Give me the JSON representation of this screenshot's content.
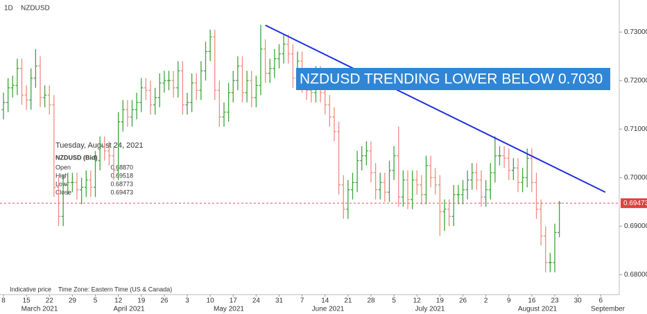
{
  "chart_data": {
    "type": "ohlc",
    "symbol_interval": "1D",
    "symbol": "NZDUSD",
    "footer_left": "Indicative price",
    "footer_timezone": "Time Zone: Eastern Time (US & Canada)",
    "annotation": "NZDUSD TRENDING LOWER BELOW 0.7030",
    "up_color": "#3aa53a",
    "down_color": "#f08a80",
    "trend_color": "#1f2fe0",
    "annotation_color": "#2f86d6",
    "x": [
      "2021-03-08",
      "2021-03-09",
      "2021-03-10",
      "2021-03-11",
      "2021-03-12",
      "2021-03-15",
      "2021-03-16",
      "2021-03-17",
      "2021-03-18",
      "2021-03-19",
      "2021-03-22",
      "2021-03-23",
      "2021-03-24",
      "2021-03-25",
      "2021-03-26",
      "2021-03-29",
      "2021-03-30",
      "2021-03-31",
      "2021-04-01",
      "2021-04-02",
      "2021-04-05",
      "2021-04-06",
      "2021-04-07",
      "2021-04-08",
      "2021-04-09",
      "2021-04-12",
      "2021-04-13",
      "2021-04-14",
      "2021-04-15",
      "2021-04-16",
      "2021-04-19",
      "2021-04-20",
      "2021-04-21",
      "2021-04-22",
      "2021-04-23",
      "2021-04-26",
      "2021-04-27",
      "2021-04-28",
      "2021-04-29",
      "2021-04-30",
      "2021-05-03",
      "2021-05-04",
      "2021-05-05",
      "2021-05-06",
      "2021-05-07",
      "2021-05-10",
      "2021-05-11",
      "2021-05-12",
      "2021-05-13",
      "2021-05-14",
      "2021-05-17",
      "2021-05-18",
      "2021-05-19",
      "2021-05-20",
      "2021-05-21",
      "2021-05-24",
      "2021-05-25",
      "2021-05-26",
      "2021-05-27",
      "2021-05-28",
      "2021-05-31",
      "2021-06-01",
      "2021-06-02",
      "2021-06-03",
      "2021-06-04",
      "2021-06-07",
      "2021-06-08",
      "2021-06-09",
      "2021-06-10",
      "2021-06-11",
      "2021-06-14",
      "2021-06-15",
      "2021-06-16",
      "2021-06-17",
      "2021-06-18",
      "2021-06-21",
      "2021-06-22",
      "2021-06-23",
      "2021-06-24",
      "2021-06-25",
      "2021-06-28",
      "2021-06-29",
      "2021-06-30",
      "2021-07-01",
      "2021-07-02",
      "2021-07-05",
      "2021-07-06",
      "2021-07-07",
      "2021-07-08",
      "2021-07-09",
      "2021-07-12",
      "2021-07-13",
      "2021-07-14",
      "2021-07-15",
      "2021-07-16",
      "2021-07-19",
      "2021-07-20",
      "2021-07-21",
      "2021-07-22",
      "2021-07-23",
      "2021-07-26",
      "2021-07-27",
      "2021-07-28",
      "2021-07-29",
      "2021-07-30",
      "2021-08-02",
      "2021-08-03",
      "2021-08-04",
      "2021-08-05",
      "2021-08-06",
      "2021-08-09",
      "2021-08-10",
      "2021-08-11",
      "2021-08-12",
      "2021-08-13",
      "2021-08-16",
      "2021-08-17",
      "2021-08-18",
      "2021-08-19",
      "2021-08-20",
      "2021-08-23",
      "2021-08-24"
    ],
    "open": [
      0.714,
      0.7155,
      0.7185,
      0.719,
      0.7225,
      0.717,
      0.716,
      0.7205,
      0.723,
      0.7165,
      0.717,
      0.715,
      0.698,
      0.692,
      0.6985,
      0.699,
      0.699,
      0.6975,
      0.698,
      0.6995,
      0.698,
      0.7035,
      0.7065,
      0.7055,
      0.7045,
      0.7015,
      0.7115,
      0.714,
      0.7125,
      0.714,
      0.7155,
      0.7185,
      0.718,
      0.715,
      0.7165,
      0.7195,
      0.72,
      0.72,
      0.7185,
      0.722,
      0.715,
      0.7155,
      0.7195,
      0.718,
      0.722,
      0.726,
      0.729,
      0.718,
      0.7125,
      0.7135,
      0.7175,
      0.72,
      0.723,
      0.7175,
      0.72,
      0.7165,
      0.719,
      0.7265,
      0.7215,
      0.7225,
      0.7245,
      0.7255,
      0.7275,
      0.7255,
      0.7205,
      0.724,
      0.7195,
      0.718,
      0.7175,
      0.721,
      0.7175,
      0.715,
      0.7125,
      0.7095,
      0.6985,
      0.6935,
      0.6975,
      0.699,
      0.7035,
      0.7045,
      0.7055,
      0.701,
      0.6975,
      0.699,
      0.697,
      0.7015,
      0.7045,
      0.696,
      0.6995,
      0.6955,
      0.6995,
      0.6985,
      0.6965,
      0.7025,
      0.7,
      0.6985,
      0.693,
      0.6935,
      0.692,
      0.6965,
      0.6965,
      0.6975,
      0.6995,
      0.701,
      0.6995,
      0.696,
      0.6975,
      0.701,
      0.7045,
      0.7045,
      0.704,
      0.7015,
      0.702,
      0.699,
      0.7,
      0.704,
      0.699,
      0.6935,
      0.688,
      0.6825,
      0.6825,
      0.6887
    ],
    "high": [
      0.7175,
      0.7205,
      0.721,
      0.7245,
      0.7245,
      0.719,
      0.7225,
      0.7265,
      0.725,
      0.719,
      0.719,
      0.717,
      0.7,
      0.7005,
      0.701,
      0.701,
      0.701,
      0.7,
      0.7015,
      0.7015,
      0.7055,
      0.7085,
      0.7085,
      0.7075,
      0.7065,
      0.7135,
      0.716,
      0.716,
      0.716,
      0.7175,
      0.7205,
      0.7205,
      0.72,
      0.7185,
      0.7215,
      0.722,
      0.722,
      0.722,
      0.724,
      0.724,
      0.7175,
      0.7215,
      0.7215,
      0.724,
      0.728,
      0.7305,
      0.7305,
      0.72,
      0.7155,
      0.7195,
      0.722,
      0.725,
      0.725,
      0.722,
      0.722,
      0.721,
      0.7315,
      0.7285,
      0.7245,
      0.7265,
      0.7275,
      0.7295,
      0.7295,
      0.7275,
      0.726,
      0.726,
      0.7215,
      0.72,
      0.723,
      0.723,
      0.7195,
      0.717,
      0.7145,
      0.7115,
      0.7005,
      0.6995,
      0.701,
      0.7055,
      0.7065,
      0.7075,
      0.7075,
      0.703,
      0.701,
      0.701,
      0.7035,
      0.7065,
      0.7105,
      0.7015,
      0.7015,
      0.7015,
      0.7015,
      0.7005,
      0.7045,
      0.7045,
      0.702,
      0.7005,
      0.6955,
      0.6955,
      0.6985,
      0.6985,
      0.6995,
      0.7015,
      0.703,
      0.703,
      0.7015,
      0.6995,
      0.703,
      0.7085,
      0.7065,
      0.7065,
      0.706,
      0.704,
      0.704,
      0.702,
      0.706,
      0.706,
      0.701,
      0.6955,
      0.69,
      0.6845,
      0.6905,
      0.69518
    ],
    "low": [
      0.712,
      0.7135,
      0.7165,
      0.717,
      0.715,
      0.714,
      0.714,
      0.7185,
      0.7145,
      0.7145,
      0.713,
      0.696,
      0.69,
      0.69,
      0.6965,
      0.697,
      0.6955,
      0.6945,
      0.696,
      0.696,
      0.696,
      0.7015,
      0.7035,
      0.7025,
      0.6995,
      0.6995,
      0.7095,
      0.7105,
      0.7105,
      0.712,
      0.7135,
      0.716,
      0.713,
      0.713,
      0.7145,
      0.7175,
      0.718,
      0.7165,
      0.7165,
      0.713,
      0.713,
      0.7135,
      0.716,
      0.716,
      0.72,
      0.724,
      0.716,
      0.7105,
      0.7105,
      0.7115,
      0.7155,
      0.718,
      0.7155,
      0.7155,
      0.7145,
      0.7145,
      0.717,
      0.7195,
      0.7195,
      0.7205,
      0.7225,
      0.7235,
      0.7235,
      0.7185,
      0.7185,
      0.7175,
      0.716,
      0.7155,
      0.7155,
      0.7155,
      0.713,
      0.7105,
      0.7075,
      0.6965,
      0.6915,
      0.6915,
      0.6955,
      0.697,
      0.7015,
      0.7025,
      0.699,
      0.6955,
      0.6955,
      0.695,
      0.695,
      0.6995,
      0.694,
      0.694,
      0.6935,
      0.6935,
      0.6965,
      0.6945,
      0.6945,
      0.698,
      0.6965,
      0.688,
      0.689,
      0.69,
      0.69,
      0.6945,
      0.6945,
      0.6955,
      0.6975,
      0.6975,
      0.694,
      0.694,
      0.6955,
      0.699,
      0.7025,
      0.702,
      0.6995,
      0.6995,
      0.697,
      0.697,
      0.698,
      0.697,
      0.6915,
      0.686,
      0.6805,
      0.6805,
      0.6805,
      0.68773
    ],
    "close": [
      0.7155,
      0.7185,
      0.719,
      0.7225,
      0.717,
      0.716,
      0.7205,
      0.723,
      0.7165,
      0.717,
      0.715,
      0.698,
      0.692,
      0.6985,
      0.699,
      0.699,
      0.6975,
      0.698,
      0.6995,
      0.698,
      0.7035,
      0.7065,
      0.7055,
      0.7045,
      0.7015,
      0.7115,
      0.714,
      0.7125,
      0.714,
      0.7155,
      0.7185,
      0.718,
      0.715,
      0.7165,
      0.7195,
      0.72,
      0.72,
      0.7185,
      0.722,
      0.715,
      0.7155,
      0.7195,
      0.718,
      0.722,
      0.726,
      0.729,
      0.718,
      0.7125,
      0.7135,
      0.7175,
      0.72,
      0.723,
      0.7175,
      0.72,
      0.7165,
      0.719,
      0.7265,
      0.7215,
      0.7225,
      0.7245,
      0.7255,
      0.7275,
      0.7255,
      0.7205,
      0.724,
      0.7195,
      0.718,
      0.7175,
      0.721,
      0.7175,
      0.715,
      0.7125,
      0.7095,
      0.6985,
      0.6935,
      0.6975,
      0.699,
      0.7035,
      0.7045,
      0.7055,
      0.701,
      0.6975,
      0.699,
      0.697,
      0.7015,
      0.7045,
      0.696,
      0.6995,
      0.6955,
      0.6995,
      0.6985,
      0.6965,
      0.7025,
      0.7,
      0.6985,
      0.693,
      0.6935,
      0.692,
      0.6965,
      0.6965,
      0.6975,
      0.6995,
      0.701,
      0.6995,
      0.696,
      0.6975,
      0.701,
      0.7045,
      0.7045,
      0.704,
      0.7015,
      0.702,
      0.699,
      0.7,
      0.704,
      0.699,
      0.6935,
      0.688,
      0.6825,
      0.6825,
      0.6887,
      0.69473
    ],
    "last_price_label": "0.69473",
    "ylim": [
      0.6759,
      0.7366
    ],
    "yticks": [
      {
        "value": 0.68,
        "label": "0.68000"
      },
      {
        "value": 0.69,
        "label": "0.69000"
      },
      {
        "value": 0.7,
        "label": "0.70000"
      },
      {
        "value": 0.71,
        "label": "0.71000"
      },
      {
        "value": 0.72,
        "label": "0.72000"
      },
      {
        "value": 0.73,
        "label": "0.73000"
      }
    ],
    "xticks": [
      {
        "value": "2021-03-08",
        "label": "8"
      },
      {
        "value": "2021-03-15",
        "label": "15"
      },
      {
        "value": "2021-03-22",
        "label": "22"
      },
      {
        "value": "2021-03-29",
        "label": "29"
      },
      {
        "value": "2021-04-05",
        "label": "5"
      },
      {
        "value": "2021-04-12",
        "label": "12"
      },
      {
        "value": "2021-04-19",
        "label": "19"
      },
      {
        "value": "2021-04-26",
        "label": "26"
      },
      {
        "value": "2021-05-03",
        "label": "3"
      },
      {
        "value": "2021-05-10",
        "label": "10"
      },
      {
        "value": "2021-05-17",
        "label": "17"
      },
      {
        "value": "2021-05-24",
        "label": "24"
      },
      {
        "value": "2021-05-31",
        "label": "31"
      },
      {
        "value": "2021-06-07",
        "label": "7"
      },
      {
        "value": "2021-06-14",
        "label": "14"
      },
      {
        "value": "2021-06-21",
        "label": "21"
      },
      {
        "value": "2021-06-28",
        "label": "28"
      },
      {
        "value": "2021-07-05",
        "label": "5"
      },
      {
        "value": "2021-07-12",
        "label": "12"
      },
      {
        "value": "2021-07-19",
        "label": "19"
      },
      {
        "value": "2021-07-26",
        "label": "26"
      },
      {
        "value": "2021-08-02",
        "label": "2"
      },
      {
        "value": "2021-08-09",
        "label": "9"
      },
      {
        "value": "2021-08-16",
        "label": "16"
      },
      {
        "value": "2021-08-23",
        "label": "23"
      },
      {
        "value": "2021-08-30",
        "label": "30"
      },
      {
        "value": "2021-09-06",
        "label": "6"
      }
    ],
    "months": [
      "March 2021",
      "April 2021",
      "May 2021",
      "June 2021",
      "July 2021",
      "August 2021",
      "September"
    ],
    "trendline": {
      "start": {
        "x": "2021-05-26",
        "y": 0.7314
      },
      "end": {
        "x": "2021-09-07",
        "y": 0.697
      }
    },
    "tooltip": {
      "date": "Tuesday, August 24, 2021",
      "title": "NZDUSD (Bid)",
      "rows": [
        {
          "label": "Open",
          "value": "0.68870"
        },
        {
          "label": "High",
          "value": "0.69518"
        },
        {
          "label": "Low",
          "value": "0.68773"
        },
        {
          "label": "Close",
          "value": "0.69473"
        }
      ]
    }
  }
}
